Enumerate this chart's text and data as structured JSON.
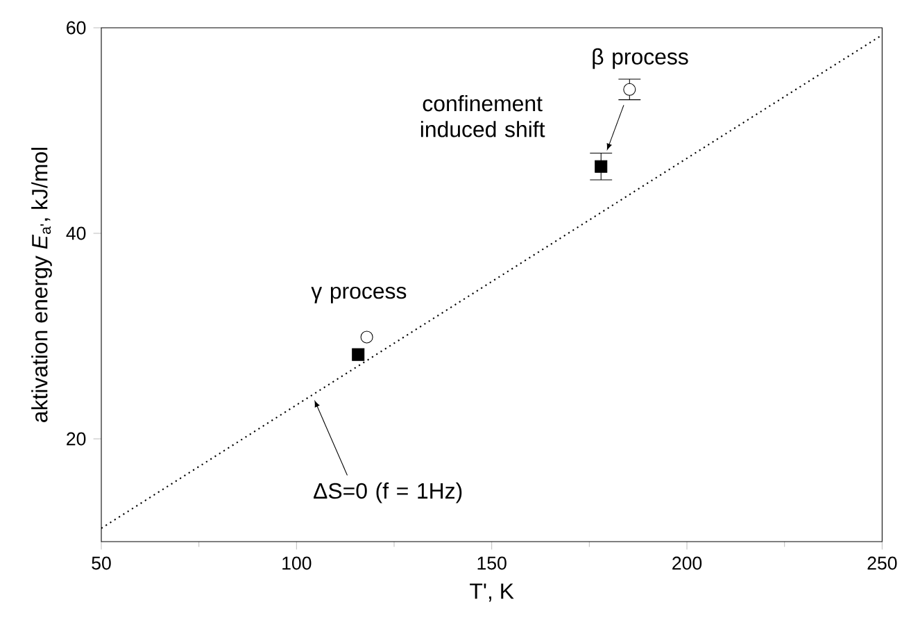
{
  "chart_data": {
    "type": "scatter",
    "xlabel": "T', K",
    "ylabel": "aktivation energy *E*$_{a'}$, kJ/mol",
    "xlim": [
      50,
      250
    ],
    "xticks": [
      50,
      100,
      150,
      200,
      250
    ],
    "ylim": [
      10,
      60
    ],
    "yticks": [
      20,
      40,
      60
    ],
    "grid": false,
    "series": [
      {
        "marker": "square",
        "color": "#000000",
        "x": [
          115.8,
          178
        ],
        "values": [
          28.2,
          46.5
        ],
        "errors": [
          null,
          1.3
        ]
      },
      {
        "marker": "circle",
        "color": "#000000",
        "x": [
          118,
          185.3
        ],
        "values": [
          29.9,
          54.0
        ],
        "errors": [
          null,
          1.0
        ]
      },
      {
        "type": "line",
        "line_style": "dotted",
        "marker": "none",
        "color": "#000000",
        "x": [
          50,
          250
        ],
        "values": [
          11.3,
          59.3
        ]
      }
    ],
    "annotations": [
      "γ process",
      "β process",
      "confinement induced shift",
      {
        "text": "ΔS=0 (f = 1Hz)",
        "x": 104,
        "y": 24.3
      }
    ]
  }
}
